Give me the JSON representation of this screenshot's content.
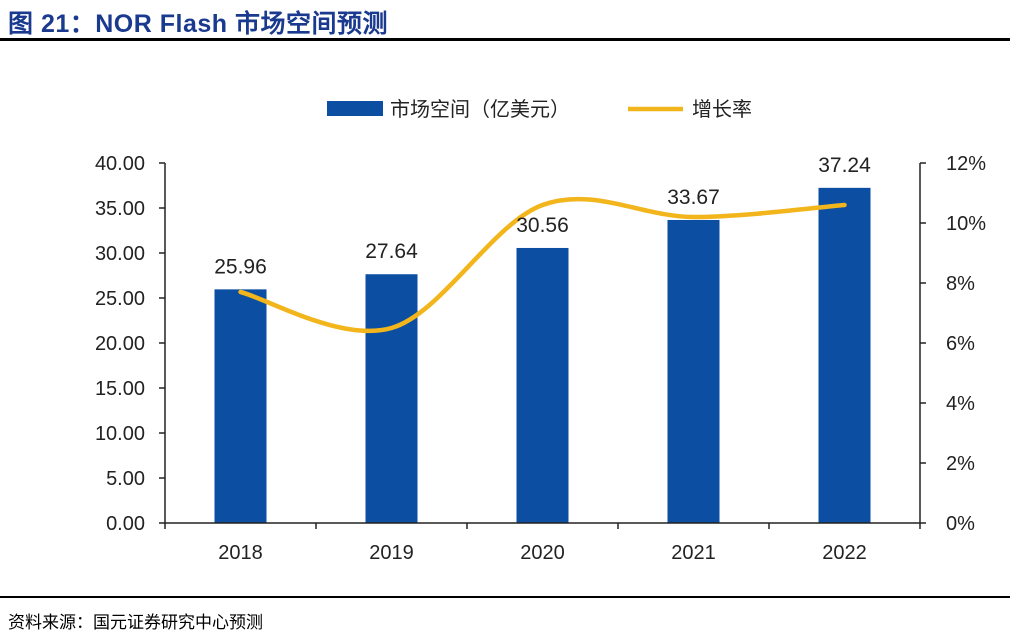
{
  "figure": {
    "title": "图 21：NOR Flash 市场空间预测",
    "source": "资料来源：国元证券研究中心预测"
  },
  "chart_data": {
    "type": "bar",
    "categories": [
      "2018",
      "2019",
      "2020",
      "2021",
      "2022"
    ],
    "series": [
      {
        "name": "市场空间（亿美元）",
        "type": "bar",
        "axis": "left",
        "color": "#0b4ea2",
        "values": [
          25.96,
          27.64,
          30.56,
          33.67,
          37.24
        ],
        "data_labels": [
          "25.96",
          "27.64",
          "30.56",
          "33.67",
          "37.24"
        ]
      },
      {
        "name": "增长率",
        "type": "line",
        "smooth": true,
        "axis": "right",
        "color": "#f2b51b",
        "values": [
          0.077,
          0.065,
          0.106,
          0.102,
          0.106
        ]
      }
    ],
    "y_left": {
      "ylim": [
        0,
        40
      ],
      "ticks": [
        "0.00",
        "5.00",
        "10.00",
        "15.00",
        "20.00",
        "25.00",
        "30.00",
        "35.00",
        "40.00"
      ]
    },
    "y_right": {
      "ylim": [
        0,
        0.12
      ],
      "ticks": [
        "0%",
        "2%",
        "4%",
        "6%",
        "8%",
        "10%",
        "12%"
      ]
    },
    "grid": false,
    "legend_position": "top"
  }
}
